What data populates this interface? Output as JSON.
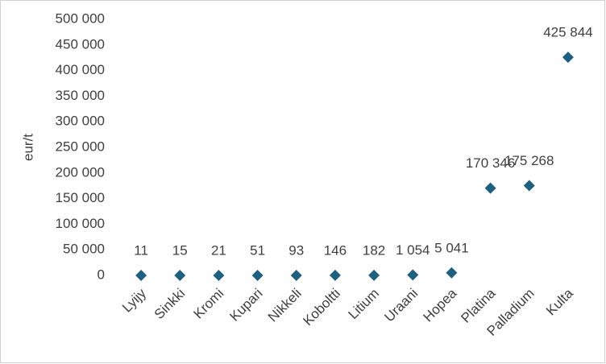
{
  "chart_data": {
    "type": "scatter",
    "y_label": "eur/t",
    "categories": [
      "Lyijy",
      "Sinkki",
      "Kromi",
      "Kupari",
      "Nikkeli",
      "Koboltti",
      "Litium",
      "Uraani",
      "Hopea",
      "Platina",
      "Palladium",
      "Kulta"
    ],
    "values": [
      11,
      15,
      21,
      51,
      93,
      146,
      182,
      1054,
      5041,
      170346,
      175268,
      425844
    ],
    "value_labels": [
      "11",
      "15",
      "21",
      "51",
      "93",
      "146",
      "182",
      "1 054",
      "5 041",
      "170 346",
      "175 268",
      "425 844"
    ],
    "color": "#1f5f80",
    "ylim": [
      0,
      500000
    ],
    "yticks": [
      0,
      {
        "value": 50000,
        "label": "50 000"
      },
      {
        "value": 100000,
        "label": "100 000"
      },
      {
        "value": 150000,
        "label": "150 000"
      },
      {
        "value": 200000,
        "label": "200 000"
      },
      {
        "value": 250000,
        "label": "250 000"
      },
      {
        "value": 300000,
        "label": "300 000"
      },
      {
        "value": 350000,
        "label": "350 000"
      },
      {
        "value": 400000,
        "label": "400 000"
      },
      {
        "value": 450000,
        "label": "450 000"
      },
      {
        "value": 500000,
        "label": "500 000"
      }
    ],
    "grid": false
  }
}
